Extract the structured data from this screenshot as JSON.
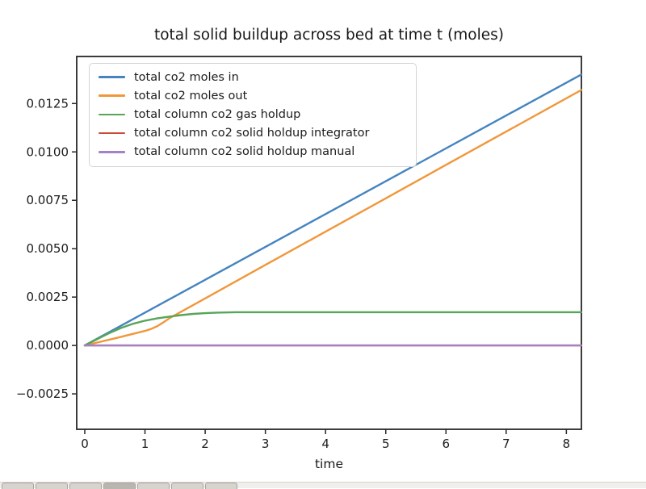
{
  "chart_data": {
    "type": "line",
    "title": "total solid buildup across bed at time t (moles)",
    "xlabel": "time",
    "ylabel": "",
    "grid": false,
    "legend_position": "upper left",
    "xlim": [
      -0.134,
      8.25
    ],
    "ylim": [
      -0.00433,
      0.01493
    ],
    "xticks": [
      {
        "v": 0,
        "label": "0"
      },
      {
        "v": 1,
        "label": "1"
      },
      {
        "v": 2,
        "label": "2"
      },
      {
        "v": 3,
        "label": "3"
      },
      {
        "v": 4,
        "label": "4"
      },
      {
        "v": 5,
        "label": "5"
      },
      {
        "v": 6,
        "label": "6"
      },
      {
        "v": 7,
        "label": "7"
      },
      {
        "v": 8,
        "label": "8"
      }
    ],
    "yticks": [
      {
        "v": -0.0025,
        "label": "−0.0025"
      },
      {
        "v": 0.0,
        "label": "0.0000"
      },
      {
        "v": 0.0025,
        "label": "0.0025"
      },
      {
        "v": 0.005,
        "label": "0.0050"
      },
      {
        "v": 0.0075,
        "label": "0.0075"
      },
      {
        "v": 0.01,
        "label": "0.0100"
      },
      {
        "v": 0.0125,
        "label": "0.0125"
      }
    ],
    "series": [
      {
        "id": "co2-moles-in",
        "name": "total co2 moles in",
        "color": "#4584bf",
        "points": [
          [
            0,
            0
          ],
          [
            8.25,
            0.014
          ]
        ]
      },
      {
        "id": "co2-moles-out",
        "name": "total co2 moles out",
        "color": "#f0973b",
        "points": [
          [
            0,
            0
          ],
          [
            0.5,
            0.00037
          ],
          [
            1.0,
            0.00075
          ],
          [
            1.1,
            0.00085
          ],
          [
            1.2,
            0.00099
          ],
          [
            1.3,
            0.00118
          ],
          [
            1.4,
            0.0014
          ],
          [
            2,
            0.00243
          ],
          [
            3,
            0.00416
          ],
          [
            4,
            0.00588
          ],
          [
            5,
            0.0076
          ],
          [
            6,
            0.00933
          ],
          [
            7,
            0.01105
          ],
          [
            8.25,
            0.0132
          ]
        ]
      },
      {
        "id": "gas-holdup",
        "name": "total column co2 gas holdup",
        "color": "#57a559",
        "points": [
          [
            0,
            0
          ],
          [
            0.2,
            0.00032
          ],
          [
            0.4,
            0.00063
          ],
          [
            0.6,
            0.0009
          ],
          [
            0.8,
            0.00112
          ],
          [
            1.0,
            0.00128
          ],
          [
            1.2,
            0.0014
          ],
          [
            1.4,
            0.00149
          ],
          [
            1.6,
            0.00157
          ],
          [
            1.8,
            0.00163
          ],
          [
            2.0,
            0.00167
          ],
          [
            2.2,
            0.0017
          ],
          [
            2.5,
            0.00172
          ],
          [
            8.25,
            0.00172
          ]
        ]
      },
      {
        "id": "solid-holdup-integrator",
        "name": "total column co2 solid holdup integrator",
        "color": "#c94a35",
        "points": [
          [
            0,
            0
          ],
          [
            8.25,
            0.0
          ]
        ]
      },
      {
        "id": "solid-holdup-manual",
        "name": "total column co2 solid holdup manual",
        "color": "#a383c6",
        "points": [
          [
            0,
            0
          ],
          [
            8.25,
            0.0
          ]
        ]
      }
    ]
  },
  "toolbar": {
    "button_count": 7,
    "pressed_button_index": 3
  }
}
